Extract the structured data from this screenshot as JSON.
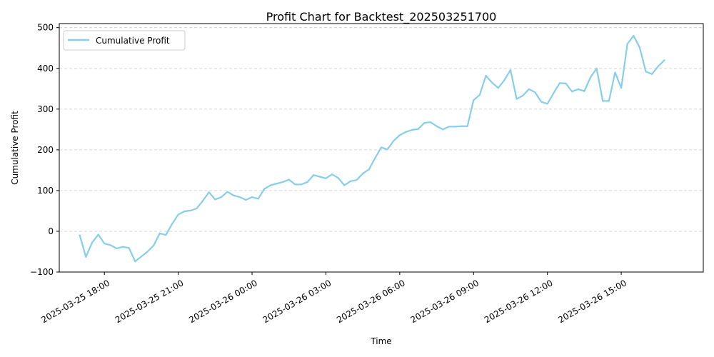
{
  "chart_data": {
    "type": "line",
    "title": "Profit Chart for Backtest_202503251700",
    "xlabel": "Time",
    "ylabel": "Cumulative Profit",
    "ylim": [
      -100,
      510
    ],
    "xlim": [
      "2025-03-25 16:10",
      "2025-03-26 18:20"
    ],
    "grid": "y-only, dashed",
    "legend": "upper-left",
    "line_color": "#87CEEB",
    "y_ticks": [
      -100,
      0,
      100,
      200,
      300,
      400,
      500
    ],
    "y_tick_labels": [
      "−100",
      "0",
      "100",
      "200",
      "300",
      "400",
      "500"
    ],
    "x_ticks": [
      "2025-03-25 18:00",
      "2025-03-25 21:00",
      "2025-03-26 00:00",
      "2025-03-26 03:00",
      "2025-03-26 06:00",
      "2025-03-26 09:00",
      "2025-03-26 12:00",
      "2025-03-26 15:00"
    ],
    "x_tick_labels": [
      "2025-03-25 18:00",
      "2025-03-25 21:00",
      "2025-03-26 00:00",
      "2025-03-26 03:00",
      "2025-03-26 06:00",
      "2025-03-26 09:00",
      "2025-03-26 12:00",
      "2025-03-26 15:00"
    ],
    "series": [
      {
        "name": "Cumulative Profit",
        "x": [
          "2025-03-25 17:00",
          "2025-03-25 17:15",
          "2025-03-25 17:30",
          "2025-03-25 17:45",
          "2025-03-25 18:00",
          "2025-03-25 18:15",
          "2025-03-25 18:30",
          "2025-03-25 18:45",
          "2025-03-25 19:00",
          "2025-03-25 19:15",
          "2025-03-25 19:30",
          "2025-03-25 19:45",
          "2025-03-25 20:00",
          "2025-03-25 20:15",
          "2025-03-25 20:30",
          "2025-03-25 20:45",
          "2025-03-25 21:00",
          "2025-03-25 21:15",
          "2025-03-25 21:30",
          "2025-03-25 21:45",
          "2025-03-25 22:00",
          "2025-03-25 22:15",
          "2025-03-25 22:30",
          "2025-03-25 22:45",
          "2025-03-25 23:00",
          "2025-03-25 23:15",
          "2025-03-25 23:30",
          "2025-03-25 23:45",
          "2025-03-26 00:00",
          "2025-03-26 00:15",
          "2025-03-26 00:30",
          "2025-03-26 00:45",
          "2025-03-26 01:00",
          "2025-03-26 01:15",
          "2025-03-26 01:30",
          "2025-03-26 01:45",
          "2025-03-26 02:00",
          "2025-03-26 02:15",
          "2025-03-26 02:30",
          "2025-03-26 02:45",
          "2025-03-26 03:00",
          "2025-03-26 03:15",
          "2025-03-26 03:30",
          "2025-03-26 03:45",
          "2025-03-26 04:00",
          "2025-03-26 04:15",
          "2025-03-26 04:30",
          "2025-03-26 04:45",
          "2025-03-26 05:00",
          "2025-03-26 05:15",
          "2025-03-26 05:30",
          "2025-03-26 05:45",
          "2025-03-26 06:00",
          "2025-03-26 06:15",
          "2025-03-26 06:30",
          "2025-03-26 06:45",
          "2025-03-26 07:00",
          "2025-03-26 07:15",
          "2025-03-26 07:30",
          "2025-03-26 07:45",
          "2025-03-26 08:00",
          "2025-03-26 08:15",
          "2025-03-26 08:30",
          "2025-03-26 08:45",
          "2025-03-26 09:00",
          "2025-03-26 09:15",
          "2025-03-26 09:30",
          "2025-03-26 09:45",
          "2025-03-26 10:00",
          "2025-03-26 10:15",
          "2025-03-26 10:30",
          "2025-03-26 10:45",
          "2025-03-26 11:00",
          "2025-03-26 11:15",
          "2025-03-26 11:30",
          "2025-03-26 11:45",
          "2025-03-26 12:00",
          "2025-03-26 12:15",
          "2025-03-26 12:30",
          "2025-03-26 12:45",
          "2025-03-26 13:00",
          "2025-03-26 13:15",
          "2025-03-26 13:30",
          "2025-03-26 13:45",
          "2025-03-26 14:00",
          "2025-03-26 14:15",
          "2025-03-26 14:30",
          "2025-03-26 14:45",
          "2025-03-26 15:00",
          "2025-03-26 15:15",
          "2025-03-26 15:30",
          "2025-03-26 15:45",
          "2025-03-26 16:00",
          "2025-03-26 16:15",
          "2025-03-26 16:30",
          "2025-03-26 16:45"
        ],
        "y": [
          -10,
          -63,
          -28,
          -8,
          -30,
          -34,
          -42,
          -38,
          -41,
          -74,
          -62,
          -50,
          -35,
          -5,
          -9,
          18,
          41,
          49,
          51,
          56,
          75,
          96,
          78,
          84,
          97,
          88,
          84,
          77,
          84,
          80,
          104,
          113,
          117,
          121,
          127,
          115,
          115,
          121,
          138,
          134,
          130,
          140,
          131,
          113,
          123,
          126,
          142,
          152,
          180,
          206,
          201,
          222,
          236,
          244,
          249,
          251,
          266,
          268,
          258,
          250,
          257,
          257,
          258,
          258,
          322,
          335,
          382,
          365,
          352,
          371,
          396,
          325,
          333,
          349,
          341,
          318,
          313,
          339,
          364,
          363,
          343,
          349,
          344,
          378,
          400,
          320,
          320,
          390,
          352,
          460,
          480,
          451,
          392,
          386,
          405,
          420
        ]
      }
    ]
  }
}
